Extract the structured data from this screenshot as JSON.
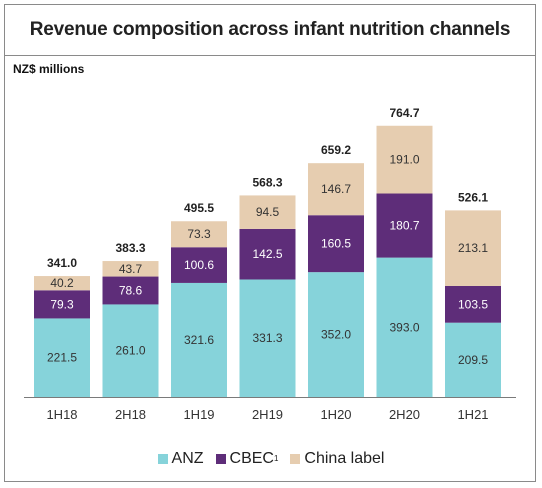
{
  "title": "Revenue composition across infant nutrition channels",
  "unit_label": "NZ$ millions",
  "colors": {
    "ANZ": "#86d3da",
    "CBEC": "#5e2d79",
    "China label": "#e6cdb0"
  },
  "legend": [
    {
      "name": "ANZ",
      "sup": ""
    },
    {
      "name": "CBEC",
      "sup": "1"
    },
    {
      "name": "China label",
      "sup": ""
    }
  ],
  "chart_data": {
    "type": "bar",
    "stacked": true,
    "categories": [
      "1H18",
      "2H18",
      "1H19",
      "2H19",
      "1H20",
      "2H20",
      "1H21"
    ],
    "series": [
      {
        "name": "ANZ",
        "values": [
          221.5,
          261.0,
          321.6,
          331.3,
          352.0,
          393.0,
          209.5
        ]
      },
      {
        "name": "CBEC",
        "values": [
          79.3,
          78.6,
          100.6,
          142.5,
          160.5,
          180.7,
          103.5
        ]
      },
      {
        "name": "China label",
        "values": [
          40.2,
          43.7,
          73.3,
          94.5,
          146.7,
          191.0,
          213.1
        ]
      }
    ],
    "totals": [
      341.0,
      383.3,
      495.5,
      568.3,
      659.2,
      764.7,
      526.1
    ],
    "value_labels": [
      [
        "221.5",
        "261.0",
        "321.6",
        "331.3",
        "352.0",
        "393.0",
        "209.5"
      ],
      [
        "79.3",
        "78.6",
        "100.6",
        "142.5",
        "160.5",
        "180.7",
        "103.5"
      ],
      [
        "40.2",
        "43.7",
        "73.3",
        "94.5",
        "146.7",
        "191.0",
        "213.1"
      ]
    ],
    "total_labels": [
      "341.0",
      "383.3",
      "495.5",
      "568.3",
      "659.2",
      "764.7",
      "526.1"
    ],
    "ylim": [
      0,
      800
    ],
    "xlabel": "",
    "ylabel": "NZ$ millions",
    "grid": false,
    "legend_position": "bottom"
  }
}
